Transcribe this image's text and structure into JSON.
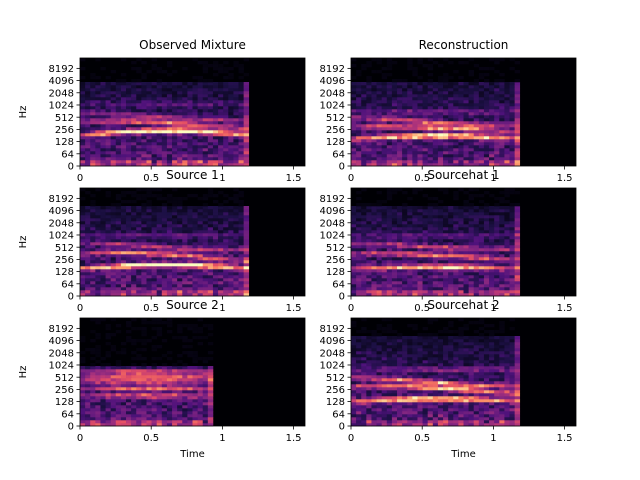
{
  "figure": {
    "colormap": "magma",
    "background": "#ffffff"
  },
  "chart_data": [
    {
      "type": "heatmap",
      "title": "Observed Mixture",
      "xlabel": "",
      "ylabel": "Hz",
      "xlim": [
        0,
        1.58
      ],
      "x_ticks": [
        0,
        0.5,
        1,
        1.5
      ],
      "x_tick_labels": [
        "0",
        "0.5",
        "1",
        "1.5"
      ],
      "y_scale": "log2-like",
      "y_tick_labels": [
        "0",
        "64",
        "128",
        "256",
        "512",
        "1024",
        "2048",
        "4096",
        "8192"
      ],
      "signal_duration": 1.18,
      "high_cutoff": 4096,
      "harmonics": [
        {
          "base": 180,
          "slope": 60,
          "strength": 1.0
        },
        {
          "base": 330,
          "slope": 80,
          "strength": 0.55
        },
        {
          "base": 560,
          "slope": 120,
          "strength": 0.35
        },
        {
          "base": 1100,
          "slope": 0,
          "strength": 0.12
        }
      ]
    },
    {
      "type": "heatmap",
      "title": "Reconstruction",
      "xlabel": "",
      "ylabel": "",
      "xlim": [
        0,
        1.58
      ],
      "x_ticks": [
        0,
        0.5,
        1,
        1.5
      ],
      "x_tick_labels": [
        "0",
        "0.5",
        "1",
        "1.5"
      ],
      "y_scale": "log2-like",
      "y_tick_labels": [
        "0",
        "64",
        "128",
        "256",
        "512",
        "1024",
        "2048",
        "4096",
        "8192"
      ],
      "signal_duration": 1.18,
      "high_cutoff": 4096,
      "harmonics": [
        {
          "base": 150,
          "slope": 30,
          "strength": 0.9
        },
        {
          "base": 260,
          "slope": 40,
          "strength": 0.6
        },
        {
          "base": 420,
          "slope": 90,
          "strength": 0.5
        },
        {
          "base": 700,
          "slope": 0,
          "strength": 0.2
        }
      ]
    },
    {
      "type": "heatmap",
      "title": "Source 1",
      "xlabel": "",
      "ylabel": "Hz",
      "xlim": [
        0,
        1.58
      ],
      "x_ticks": [
        0,
        0.5,
        1,
        1.5
      ],
      "x_tick_labels": [
        "0",
        "0.5",
        "1",
        "1.5"
      ],
      "y_scale": "log2-like",
      "y_tick_labels": [
        "0",
        "64",
        "128",
        "256",
        "512",
        "1024",
        "2048",
        "4096",
        "8192"
      ],
      "signal_duration": 1.18,
      "high_cutoff": 5000,
      "harmonics": [
        {
          "base": 150,
          "slope": 40,
          "strength": 1.0
        },
        {
          "base": 300,
          "slope": 80,
          "strength": 0.6
        },
        {
          "base": 560,
          "slope": 120,
          "strength": 0.4
        },
        {
          "base": 1000,
          "slope": 0,
          "strength": 0.15
        }
      ]
    },
    {
      "type": "heatmap",
      "title": "Sourcehat 1",
      "xlabel": "",
      "ylabel": "",
      "xlim": [
        0,
        1.58
      ],
      "x_ticks": [
        0,
        0.5,
        1,
        1.5
      ],
      "x_tick_labels": [
        "0",
        "0.5",
        "1",
        "1.5"
      ],
      "y_scale": "log2-like",
      "y_tick_labels": [
        "0",
        "64",
        "128",
        "256",
        "512",
        "1024",
        "2048",
        "4096",
        "8192"
      ],
      "signal_duration": 1.18,
      "high_cutoff": 5000,
      "harmonics": [
        {
          "base": 150,
          "slope": 20,
          "strength": 0.75
        },
        {
          "base": 300,
          "slope": 60,
          "strength": 0.55
        },
        {
          "base": 560,
          "slope": 100,
          "strength": 0.4
        },
        {
          "base": 1000,
          "slope": 0,
          "strength": 0.15
        }
      ]
    },
    {
      "type": "heatmap",
      "title": "Source 2",
      "xlabel": "Time",
      "ylabel": "Hz",
      "xlim": [
        0,
        1.58
      ],
      "x_ticks": [
        0,
        0.5,
        1,
        1.5
      ],
      "x_tick_labels": [
        "0",
        "0.5",
        "1",
        "1.5"
      ],
      "y_scale": "log2-like",
      "y_tick_labels": [
        "0",
        "64",
        "128",
        "256",
        "512",
        "1024",
        "2048",
        "4096",
        "8192"
      ],
      "signal_duration": 0.95,
      "high_cutoff": 900,
      "harmonics": [
        {
          "base": 180,
          "slope": 0,
          "strength": 0.45
        },
        {
          "base": 280,
          "slope": 0,
          "strength": 0.5
        },
        {
          "base": 420,
          "slope": 0,
          "strength": 0.6
        },
        {
          "base": 560,
          "slope": 0,
          "strength": 0.55
        },
        {
          "base": 720,
          "slope": 0,
          "strength": 0.4
        }
      ]
    },
    {
      "type": "heatmap",
      "title": "Sourcehat 2",
      "xlabel": "Time",
      "ylabel": "",
      "xlim": [
        0,
        1.58
      ],
      "x_ticks": [
        0,
        0.5,
        1,
        1.5
      ],
      "x_tick_labels": [
        "0",
        "0.5",
        "1",
        "1.5"
      ],
      "y_scale": "log2-like",
      "y_tick_labels": [
        "0",
        "64",
        "128",
        "256",
        "512",
        "1024",
        "2048",
        "4096",
        "8192"
      ],
      "signal_duration": 1.18,
      "high_cutoff": 5000,
      "harmonics": [
        {
          "base": 130,
          "slope": 20,
          "strength": 0.85
        },
        {
          "base": 250,
          "slope": 60,
          "strength": 0.7
        },
        {
          "base": 420,
          "slope": 100,
          "strength": 0.6
        },
        {
          "base": 800,
          "slope": 0,
          "strength": 0.25
        }
      ]
    }
  ]
}
